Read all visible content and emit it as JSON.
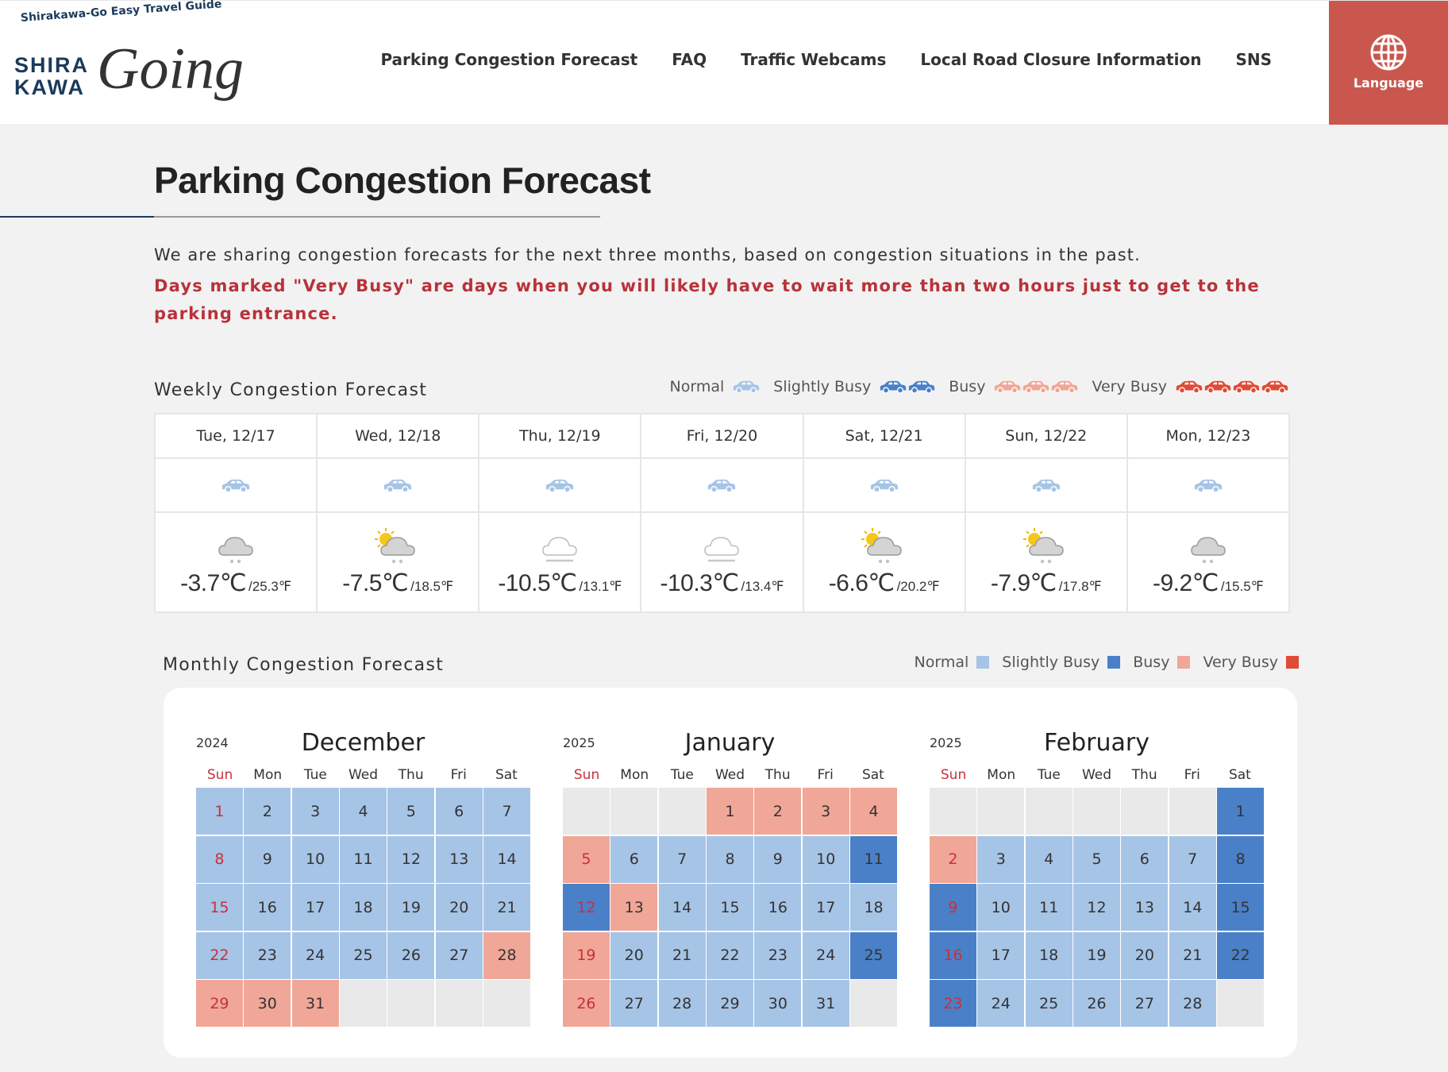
{
  "header": {
    "tagline": "Shirakawa-Go Easy Travel Guide",
    "logo_line1": "SHIRA",
    "logo_line2": "KAWA",
    "logo_script": "Going",
    "nav": [
      "Parking Congestion Forecast",
      "FAQ",
      "Traffic Webcams",
      "Local Road Closure Information",
      "SNS"
    ],
    "language": "Language"
  },
  "page": {
    "title": "Parking Congestion Forecast",
    "intro": "We are sharing congestion forecasts for the next three months, based on congestion situations in the past.",
    "notice": "Days marked \"Very Busy\" are days when you will likely have to wait more than two hours just to get to the parking entrance."
  },
  "levels": [
    {
      "label": "Normal",
      "color": "#a6c4e6"
    },
    {
      "label": "Slightly Busy",
      "color": "#4a80c8"
    },
    {
      "label": "Busy",
      "color": "#f0a797"
    },
    {
      "label": "Very Busy",
      "color": "#e04b36"
    }
  ],
  "weekly": {
    "title": "Weekly Congestion Forecast",
    "days": [
      {
        "date": "Tue, 12/17",
        "status": "Normal",
        "weather": "cloudy-snow",
        "celsius": "-3.7℃",
        "fahrenheit": "/25.3℉"
      },
      {
        "date": "Wed, 12/18",
        "status": "Normal",
        "weather": "sunny-cloudy-snow",
        "celsius": "-7.5℃",
        "fahrenheit": "/18.5℉"
      },
      {
        "date": "Thu, 12/19",
        "status": "Normal",
        "weather": "cloudy-fog",
        "celsius": "-10.5℃",
        "fahrenheit": "/13.1℉"
      },
      {
        "date": "Fri, 12/20",
        "status": "Normal",
        "weather": "cloudy-fog",
        "celsius": "-10.3℃",
        "fahrenheit": "/13.4℉"
      },
      {
        "date": "Sat, 12/21",
        "status": "Normal",
        "weather": "sunny-cloudy-snow",
        "celsius": "-6.6℃",
        "fahrenheit": "/20.2℉"
      },
      {
        "date": "Sun, 12/22",
        "status": "Normal",
        "weather": "sunny-cloudy-snow",
        "celsius": "-7.9℃",
        "fahrenheit": "/17.8℉"
      },
      {
        "date": "Mon, 12/23",
        "status": "Normal",
        "weather": "cloudy-snow",
        "celsius": "-9.2℃",
        "fahrenheit": "/15.5℉"
      }
    ]
  },
  "monthly": {
    "title": "Monthly Congestion Forecast",
    "weekdays": [
      "Sun",
      "Mon",
      "Tue",
      "Wed",
      "Thu",
      "Fri",
      "Sat"
    ],
    "months": [
      {
        "year": 2024,
        "name": "December",
        "weeks": [
          [
            {
              "day": 1,
              "status": "Normal"
            },
            {
              "day": 2,
              "status": "Normal"
            },
            {
              "day": 3,
              "status": "Normal"
            },
            {
              "day": 4,
              "status": "Normal"
            },
            {
              "day": 5,
              "status": "Normal"
            },
            {
              "day": 6,
              "status": "Normal"
            },
            {
              "day": 7,
              "status": "Normal"
            }
          ],
          [
            {
              "day": 8,
              "status": "Normal"
            },
            {
              "day": 9,
              "status": "Normal"
            },
            {
              "day": 10,
              "status": "Normal"
            },
            {
              "day": 11,
              "status": "Normal"
            },
            {
              "day": 12,
              "status": "Normal"
            },
            {
              "day": 13,
              "status": "Normal"
            },
            {
              "day": 14,
              "status": "Normal"
            }
          ],
          [
            {
              "day": 15,
              "status": "Normal"
            },
            {
              "day": 16,
              "status": "Normal"
            },
            {
              "day": 17,
              "status": "Normal"
            },
            {
              "day": 18,
              "status": "Normal"
            },
            {
              "day": 19,
              "status": "Normal"
            },
            {
              "day": 20,
              "status": "Normal"
            },
            {
              "day": 21,
              "status": "Normal"
            }
          ],
          [
            {
              "day": 22,
              "status": "Normal"
            },
            {
              "day": 23,
              "status": "Normal"
            },
            {
              "day": 24,
              "status": "Normal"
            },
            {
              "day": 25,
              "status": "Normal"
            },
            {
              "day": 26,
              "status": "Normal"
            },
            {
              "day": 27,
              "status": "Normal"
            },
            {
              "day": 28,
              "status": "Busy"
            }
          ],
          [
            {
              "day": 29,
              "status": "Busy"
            },
            {
              "day": 30,
              "status": "Busy"
            },
            {
              "day": 31,
              "status": "Busy"
            },
            null,
            null,
            null,
            null
          ]
        ]
      },
      {
        "year": 2025,
        "name": "January",
        "weeks": [
          [
            null,
            null,
            null,
            {
              "day": 1,
              "status": "Busy"
            },
            {
              "day": 2,
              "status": "Busy"
            },
            {
              "day": 3,
              "status": "Busy"
            },
            {
              "day": 4,
              "status": "Busy"
            }
          ],
          [
            {
              "day": 5,
              "status": "Busy"
            },
            {
              "day": 6,
              "status": "Normal"
            },
            {
              "day": 7,
              "status": "Normal"
            },
            {
              "day": 8,
              "status": "Normal"
            },
            {
              "day": 9,
              "status": "Normal"
            },
            {
              "day": 10,
              "status": "Normal"
            },
            {
              "day": 11,
              "status": "Slightly Busy"
            }
          ],
          [
            {
              "day": 12,
              "status": "Slightly Busy"
            },
            {
              "day": 13,
              "status": "Busy"
            },
            {
              "day": 14,
              "status": "Normal"
            },
            {
              "day": 15,
              "status": "Normal"
            },
            {
              "day": 16,
              "status": "Normal"
            },
            {
              "day": 17,
              "status": "Normal"
            },
            {
              "day": 18,
              "status": "Normal"
            }
          ],
          [
            {
              "day": 19,
              "status": "Busy"
            },
            {
              "day": 20,
              "status": "Normal"
            },
            {
              "day": 21,
              "status": "Normal"
            },
            {
              "day": 22,
              "status": "Normal"
            },
            {
              "day": 23,
              "status": "Normal"
            },
            {
              "day": 24,
              "status": "Normal"
            },
            {
              "day": 25,
              "status": "Slightly Busy"
            }
          ],
          [
            {
              "day": 26,
              "status": "Busy"
            },
            {
              "day": 27,
              "status": "Normal"
            },
            {
              "day": 28,
              "status": "Normal"
            },
            {
              "day": 29,
              "status": "Normal"
            },
            {
              "day": 30,
              "status": "Normal"
            },
            {
              "day": 31,
              "status": "Normal"
            },
            null
          ]
        ]
      },
      {
        "year": 2025,
        "name": "February",
        "weeks": [
          [
            null,
            null,
            null,
            null,
            null,
            null,
            {
              "day": 1,
              "status": "Slightly Busy"
            }
          ],
          [
            {
              "day": 2,
              "status": "Busy"
            },
            {
              "day": 3,
              "status": "Normal"
            },
            {
              "day": 4,
              "status": "Normal"
            },
            {
              "day": 5,
              "status": "Normal"
            },
            {
              "day": 6,
              "status": "Normal"
            },
            {
              "day": 7,
              "status": "Normal"
            },
            {
              "day": 8,
              "status": "Slightly Busy"
            }
          ],
          [
            {
              "day": 9,
              "status": "Slightly Busy"
            },
            {
              "day": 10,
              "status": "Normal"
            },
            {
              "day": 11,
              "status": "Normal"
            },
            {
              "day": 12,
              "status": "Normal"
            },
            {
              "day": 13,
              "status": "Normal"
            },
            {
              "day": 14,
              "status": "Normal"
            },
            {
              "day": 15,
              "status": "Slightly Busy"
            }
          ],
          [
            {
              "day": 16,
              "status": "Slightly Busy"
            },
            {
              "day": 17,
              "status": "Normal"
            },
            {
              "day": 18,
              "status": "Normal"
            },
            {
              "day": 19,
              "status": "Normal"
            },
            {
              "day": 20,
              "status": "Normal"
            },
            {
              "day": 21,
              "status": "Normal"
            },
            {
              "day": 22,
              "status": "Slightly Busy"
            }
          ],
          [
            {
              "day": 23,
              "status": "Slightly Busy"
            },
            {
              "day": 24,
              "status": "Normal"
            },
            {
              "day": 25,
              "status": "Normal"
            },
            {
              "day": 26,
              "status": "Normal"
            },
            {
              "day": 27,
              "status": "Normal"
            },
            {
              "day": 28,
              "status": "Normal"
            },
            null
          ]
        ]
      }
    ]
  }
}
